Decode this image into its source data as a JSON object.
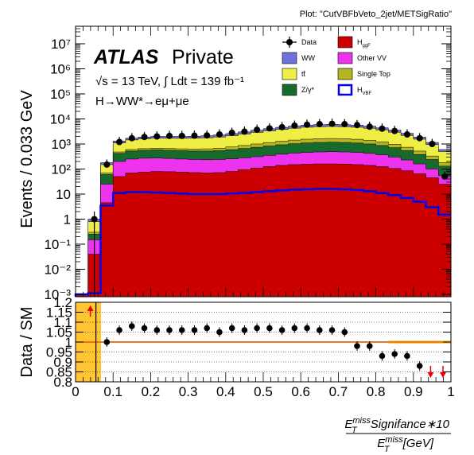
{
  "header": {
    "plot_tag": "Plot: \"CutVBFbVeto_2jet/METSigRatio\""
  },
  "labels": {
    "atlas": "ATLAS",
    "private": "Private",
    "energy": "√s = 13 TeV, ∫ Ldt = 139 fb⁻¹",
    "process": "H→WW*→eμ+μe"
  },
  "chart_data": [
    {
      "type": "histogram",
      "panel": "main",
      "ylabel": "Events / 0.033 GeV",
      "yscale": "log",
      "ylim": [
        0.0008,
        50000000
      ],
      "xlim": [
        0,
        1
      ],
      "x_tick_labels": [
        "0",
        "0.1",
        "0.2",
        "0.3",
        "0.4",
        "0.5",
        "0.6",
        "0.7",
        "0.8",
        "0.9",
        "1"
      ],
      "y_tick_labels": [
        "10⁻³",
        "10⁻²",
        "10⁻¹",
        "1",
        "10",
        "10²",
        "10³",
        "10⁴",
        "10⁵",
        "10⁶",
        "10⁷"
      ],
      "grid": false,
      "legend_position": "top-right",
      "bin_edges": [
        0,
        0.0333,
        0.0667,
        0.1,
        0.1333,
        0.1667,
        0.2,
        0.2333,
        0.2667,
        0.3,
        0.3333,
        0.3667,
        0.4,
        0.4333,
        0.4667,
        0.5,
        0.5333,
        0.5667,
        0.6,
        0.6333,
        0.6667,
        0.7,
        0.7333,
        0.7667,
        0.8,
        0.8333,
        0.8667,
        0.9,
        0.9333,
        0.9667,
        1
      ],
      "stack_totals": {
        "H_ggF": [
          0.001,
          0.04,
          4.5,
          50,
          70,
          75,
          80,
          78,
          75,
          72,
          70,
          72,
          80,
          95,
          110,
          125,
          140,
          150,
          155,
          160,
          160,
          158,
          150,
          140,
          125,
          105,
          85,
          65,
          45,
          25
        ],
        "Other VV": [
          0.001,
          0.15,
          25,
          200,
          250,
          270,
          275,
          265,
          250,
          240,
          235,
          240,
          255,
          280,
          310,
          350,
          390,
          430,
          460,
          480,
          490,
          480,
          460,
          420,
          370,
          300,
          230,
          160,
          100,
          55
        ],
        "Z/γ*": [
          0.001,
          0.25,
          60,
          420,
          520,
          560,
          580,
          560,
          540,
          520,
          520,
          540,
          590,
          660,
          740,
          830,
          930,
          1020,
          1100,
          1150,
          1170,
          1150,
          1090,
          1000,
          870,
          710,
          540,
          380,
          240,
          130
        ],
        "Single Top": [
          0.001,
          0.3,
          70,
          480,
          600,
          650,
          680,
          660,
          640,
          630,
          640,
          680,
          760,
          870,
          1000,
          1140,
          1290,
          1430,
          1550,
          1620,
          1650,
          1620,
          1540,
          1400,
          1210,
          980,
          740,
          520,
          330,
          180
        ],
        "tt̄": [
          0.001,
          0.8,
          150,
          1100,
          1450,
          1600,
          1700,
          1690,
          1680,
          1700,
          1760,
          1900,
          2150,
          2500,
          2900,
          3350,
          3800,
          4250,
          4650,
          4900,
          5000,
          4900,
          4650,
          4250,
          3650,
          2950,
          2200,
          1550,
          950,
          500
        ],
        "WW": [
          0.001,
          1.0,
          180,
          1300,
          1700,
          1880,
          2000,
          2000,
          2000,
          2030,
          2120,
          2300,
          2600,
          3030,
          3520,
          4060,
          4620,
          5160,
          5640,
          5940,
          6060,
          5940,
          5630,
          5150,
          4420,
          3570,
          2660,
          1870,
          1150,
          600
        ]
      },
      "stack_order": [
        "H_ggF",
        "Other VV",
        "Z/γ*",
        "Single Top",
        "tt̄",
        "WW"
      ],
      "H_VBF_overlay": [
        0.001,
        0.0011,
        3.5,
        11,
        12,
        12,
        11.5,
        11,
        10.5,
        10,
        10,
        10,
        10.5,
        11,
        12,
        13,
        14,
        15,
        15.5,
        16,
        16,
        15.5,
        14.5,
        13,
        11,
        9,
        7,
        5,
        3,
        1.5
      ],
      "data_points": [
        null,
        1,
        150,
        1200,
        1700,
        1900,
        2000,
        2100,
        2100,
        2150,
        2200,
        2400,
        2800,
        3100,
        3700,
        4200,
        4700,
        5400,
        5900,
        6200,
        6400,
        6200,
        5700,
        4900,
        4100,
        3300,
        2400,
        1700,
        1000,
        50
      ],
      "legend": [
        {
          "name": "Data",
          "kind": "marker",
          "color": "#000000"
        },
        {
          "name": "H_ggF",
          "label_main": "H",
          "label_sub": "ggF",
          "kind": "fill",
          "color": "#cc0000"
        },
        {
          "name": "WW",
          "kind": "fill",
          "color": "#7070dd"
        },
        {
          "name": "Other VV",
          "kind": "fill",
          "color": "#ee33ee"
        },
        {
          "name": "tt̄",
          "kind": "fill",
          "color": "#eeee44"
        },
        {
          "name": "Single Top",
          "kind": "fill",
          "color": "#b5b521"
        },
        {
          "name": "Z/γ*",
          "kind": "fill",
          "color": "#176a2e"
        },
        {
          "name": "H_VBF",
          "label_main": "H",
          "label_sub": "VBF",
          "kind": "line",
          "color": "#0000ee"
        }
      ]
    },
    {
      "type": "scatter",
      "panel": "ratio",
      "ylabel": "Data / SM",
      "ylim": [
        0.8,
        1.2
      ],
      "y_tick_labels": [
        "0.8",
        "0.85",
        "0.9",
        "0.95",
        "1",
        "1.05",
        "1.1",
        "1.15",
        "1.2"
      ],
      "xlabel_top": "E_T^miss Signifance∗10",
      "xlabel_bottom": "E_T^miss [GeV]",
      "x": [
        0.0667,
        0.0833,
        0.1167,
        0.15,
        0.1833,
        0.2167,
        0.25,
        0.2833,
        0.3167,
        0.35,
        0.3833,
        0.4167,
        0.45,
        0.4833,
        0.5167,
        0.55,
        0.5833,
        0.6167,
        0.65,
        0.6833,
        0.7167,
        0.75,
        0.7833,
        0.8167,
        0.85,
        0.8833,
        0.9167
      ],
      "ratio": [
        1.18,
        1.0,
        1.06,
        1.08,
        1.07,
        1.06,
        1.06,
        1.06,
        1.06,
        1.07,
        1.05,
        1.07,
        1.06,
        1.07,
        1.07,
        1.06,
        1.07,
        1.07,
        1.06,
        1.06,
        1.05,
        0.98,
        0.98,
        0.93,
        0.94,
        0.93,
        0.88
      ],
      "arrows_down_at": [
        0.95,
        0.983
      ],
      "arrow_up_at": [
        0.05
      ],
      "reference_line": 1.0,
      "dotted_gridlines": [
        0.85,
        0.9,
        0.95,
        1.05,
        1.1,
        1.15
      ]
    }
  ]
}
